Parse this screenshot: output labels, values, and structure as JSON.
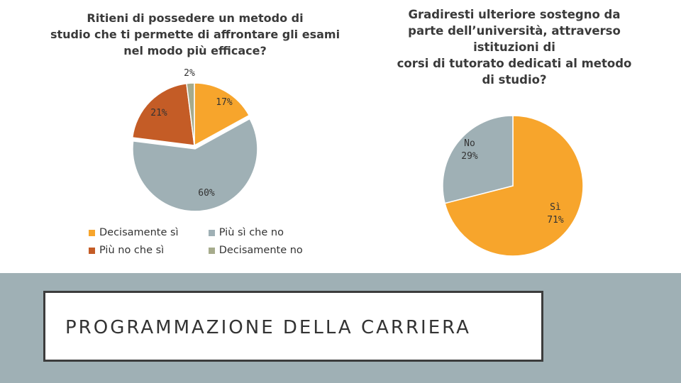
{
  "chart_data": [
    {
      "type": "pie",
      "title": "Ritieni di possedere un metodo di\nstudio che ti permette di affrontare gli esami\nnel modo più efficace?",
      "categories": [
        "Decisamente sì",
        "Più sì che no",
        "Più no che sì",
        "Decisamente no"
      ],
      "values": [
        17,
        60,
        21,
        2
      ],
      "labels": [
        "17%",
        "60%",
        "21%",
        "2%"
      ],
      "colors": [
        "#f7a52c",
        "#9fb0b5",
        "#c45c26",
        "#a6ab8c"
      ],
      "legend": "bottom"
    },
    {
      "type": "pie",
      "title": "Gradiresti ulteriore sostegno da\nparte dell’università, attraverso\nistituzioni di\ncorsi di tutorato dedicati al metodo\ndi studio?",
      "categories": [
        "Sì",
        "No"
      ],
      "values": [
        71,
        29
      ],
      "labels": [
        "Sì\n71%",
        "No\n29%"
      ],
      "colors": [
        "#f7a52c",
        "#9fb0b5"
      ],
      "legend": "none"
    }
  ],
  "section_title": "PROGRAMMAZIONE DELLA CARRIERA"
}
